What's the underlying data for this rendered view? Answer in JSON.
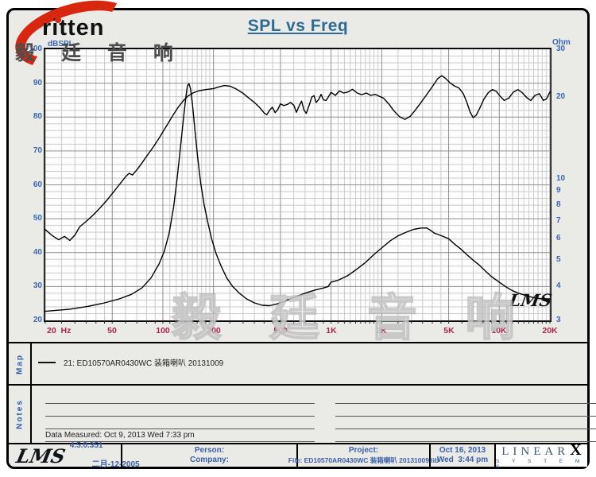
{
  "title": "SPL vs Freq",
  "logo": {
    "brand": "ritten",
    "chinese": "毅 廷 音 响"
  },
  "watermark": {
    "chinese": "毅 廷 音 响",
    "lms": "LMS"
  },
  "chart_data": {
    "type": "line",
    "title": "SPL vs Freq",
    "grid": true,
    "x_axis": {
      "scale": "log",
      "min": 20,
      "max": 20000,
      "unit": "Hz",
      "tick_values": [
        20,
        50,
        100,
        200,
        500,
        1000,
        2000,
        5000,
        10000,
        20000
      ],
      "tick_labels": [
        "20  Hz",
        "50",
        "100",
        "200",
        "500",
        "1K",
        "2K",
        "5K",
        "10K",
        "20K"
      ]
    },
    "y_axis_left": {
      "label": "dBSPL",
      "scale": "linear",
      "min": 20,
      "max": 100,
      "ticks": [
        100,
        90,
        80,
        70,
        60,
        50,
        40,
        30,
        20
      ]
    },
    "y_axis_right": {
      "label": "Ohm",
      "scale": "log",
      "min": 3,
      "max": 30,
      "ticks": [
        30,
        20,
        10,
        9,
        8,
        7,
        6,
        5,
        4,
        3
      ]
    },
    "series": [
      {
        "name": "SPL (dB)",
        "axis": "left",
        "color": "#000000",
        "points": [
          [
            20,
            46.8
          ],
          [
            22,
            45.0
          ],
          [
            24,
            43.8
          ],
          [
            26,
            44.8
          ],
          [
            28,
            43.6
          ],
          [
            30,
            45.2
          ],
          [
            32,
            47.6
          ],
          [
            35,
            49.2
          ],
          [
            38,
            50.8
          ],
          [
            42,
            53.0
          ],
          [
            46,
            55.2
          ],
          [
            50,
            57.4
          ],
          [
            55,
            60.0
          ],
          [
            60,
            62.4
          ],
          [
            63,
            63.4
          ],
          [
            66,
            62.9
          ],
          [
            70,
            64.4
          ],
          [
            75,
            66.4
          ],
          [
            80,
            68.4
          ],
          [
            85,
            70.2
          ],
          [
            90,
            72.0
          ],
          [
            95,
            73.8
          ],
          [
            100,
            75.6
          ],
          [
            107,
            78.0
          ],
          [
            115,
            80.6
          ],
          [
            123,
            82.8
          ],
          [
            132,
            84.8
          ],
          [
            141,
            86.2
          ],
          [
            152,
            87.2
          ],
          [
            165,
            87.8
          ],
          [
            180,
            88.1
          ],
          [
            200,
            88.4
          ],
          [
            215,
            88.9
          ],
          [
            232,
            89.3
          ],
          [
            252,
            89.1
          ],
          [
            275,
            88.2
          ],
          [
            300,
            87.0
          ],
          [
            325,
            85.6
          ],
          [
            350,
            84.3
          ],
          [
            375,
            82.9
          ],
          [
            400,
            81.2
          ],
          [
            415,
            80.7
          ],
          [
            432,
            82.1
          ],
          [
            448,
            82.9
          ],
          [
            465,
            81.3
          ],
          [
            482,
            82.2
          ],
          [
            500,
            83.9
          ],
          [
            522,
            83.4
          ],
          [
            548,
            83.7
          ],
          [
            575,
            84.3
          ],
          [
            600,
            83.5
          ],
          [
            622,
            81.4
          ],
          [
            645,
            83.2
          ],
          [
            668,
            84.7
          ],
          [
            690,
            82.1
          ],
          [
            712,
            81.1
          ],
          [
            740,
            83.4
          ],
          [
            768,
            85.9
          ],
          [
            792,
            86.3
          ],
          [
            815,
            84.3
          ],
          [
            845,
            85.2
          ],
          [
            872,
            86.7
          ],
          [
            900,
            85.1
          ],
          [
            935,
            84.9
          ],
          [
            968,
            86.1
          ],
          [
            1000,
            87.3
          ],
          [
            1060,
            86.4
          ],
          [
            1120,
            87.7
          ],
          [
            1190,
            87.1
          ],
          [
            1260,
            87.4
          ],
          [
            1340,
            88.2
          ],
          [
            1430,
            87.1
          ],
          [
            1520,
            86.6
          ],
          [
            1620,
            87.1
          ],
          [
            1720,
            86.4
          ],
          [
            1830,
            86.7
          ],
          [
            1940,
            86.1
          ],
          [
            2050,
            85.6
          ],
          [
            2200,
            83.9
          ],
          [
            2360,
            81.9
          ],
          [
            2550,
            80.1
          ],
          [
            2750,
            79.3
          ],
          [
            2950,
            80.2
          ],
          [
            3150,
            81.9
          ],
          [
            3400,
            84.1
          ],
          [
            3700,
            86.6
          ],
          [
            4000,
            89.0
          ],
          [
            4300,
            91.3
          ],
          [
            4550,
            92.2
          ],
          [
            4800,
            91.4
          ],
          [
            5100,
            90.1
          ],
          [
            5400,
            89.2
          ],
          [
            5750,
            88.6
          ],
          [
            6100,
            87.0
          ],
          [
            6400,
            84.5
          ],
          [
            6700,
            81.5
          ],
          [
            7000,
            79.8
          ],
          [
            7300,
            80.6
          ],
          [
            7700,
            82.9
          ],
          [
            8100,
            85.3
          ],
          [
            8600,
            87.2
          ],
          [
            9100,
            88.1
          ],
          [
            9600,
            87.6
          ],
          [
            10100,
            86.2
          ],
          [
            10700,
            84.9
          ],
          [
            11400,
            85.6
          ],
          [
            12100,
            87.3
          ],
          [
            12900,
            88.1
          ],
          [
            13700,
            87.2
          ],
          [
            14600,
            85.7
          ],
          [
            15400,
            84.9
          ],
          [
            16300,
            86.4
          ],
          [
            17300,
            86.9
          ],
          [
            18300,
            84.9
          ],
          [
            19100,
            85.4
          ],
          [
            20000,
            87.4
          ]
        ]
      },
      {
        "name": "Impedance (Ohm)",
        "axis": "right",
        "color": "#000000",
        "points": [
          [
            20,
            3.24
          ],
          [
            28,
            3.3
          ],
          [
            36,
            3.38
          ],
          [
            45,
            3.48
          ],
          [
            55,
            3.6
          ],
          [
            65,
            3.74
          ],
          [
            75,
            3.95
          ],
          [
            85,
            4.3
          ],
          [
            95,
            4.85
          ],
          [
            102,
            5.4
          ],
          [
            109,
            6.3
          ],
          [
            116,
            7.9
          ],
          [
            122,
            10.2
          ],
          [
            128,
            13.5
          ],
          [
            133,
            17.0
          ],
          [
            137,
            20.0
          ],
          [
            140,
            22.0
          ],
          [
            143,
            22.4
          ],
          [
            146,
            21.5
          ],
          [
            150,
            18.8
          ],
          [
            155,
            15.2
          ],
          [
            161,
            12.0
          ],
          [
            168,
            9.6
          ],
          [
            176,
            8.0
          ],
          [
            185,
            6.9
          ],
          [
            195,
            6.0
          ],
          [
            207,
            5.3
          ],
          [
            222,
            4.75
          ],
          [
            240,
            4.3
          ],
          [
            260,
            4.0
          ],
          [
            285,
            3.78
          ],
          [
            315,
            3.6
          ],
          [
            350,
            3.48
          ],
          [
            390,
            3.41
          ],
          [
            430,
            3.4
          ],
          [
            470,
            3.44
          ],
          [
            510,
            3.5
          ],
          [
            560,
            3.58
          ],
          [
            610,
            3.66
          ],
          [
            700,
            3.78
          ],
          [
            800,
            3.88
          ],
          [
            900,
            3.95
          ],
          [
            960,
            4.0
          ],
          [
            1000,
            4.15
          ],
          [
            1100,
            4.22
          ],
          [
            1250,
            4.38
          ],
          [
            1400,
            4.6
          ],
          [
            1600,
            4.9
          ],
          [
            1800,
            5.25
          ],
          [
            2000,
            5.55
          ],
          [
            2250,
            5.9
          ],
          [
            2500,
            6.15
          ],
          [
            2800,
            6.35
          ],
          [
            3100,
            6.5
          ],
          [
            3400,
            6.57
          ],
          [
            3700,
            6.58
          ],
          [
            3900,
            6.45
          ],
          [
            4100,
            6.3
          ],
          [
            4400,
            6.2
          ],
          [
            4700,
            6.1
          ],
          [
            5000,
            6.0
          ],
          [
            5400,
            5.75
          ],
          [
            5900,
            5.5
          ],
          [
            6400,
            5.25
          ],
          [
            7000,
            5.0
          ],
          [
            7600,
            4.8
          ],
          [
            8300,
            4.55
          ],
          [
            9000,
            4.35
          ],
          [
            10000,
            4.15
          ],
          [
            11000,
            3.98
          ],
          [
            12000,
            3.86
          ],
          [
            13000,
            3.78
          ],
          [
            14500,
            3.7
          ],
          [
            16000,
            3.64
          ],
          [
            18000,
            3.6
          ],
          [
            20000,
            3.6
          ]
        ]
      }
    ]
  },
  "map": {
    "label": "Map",
    "legend": "21: ED10570AR0430WC 装箱喇叭    20131009"
  },
  "notes": {
    "label": "Notes",
    "data_measured": "Data Measured: Oct  9, 2013  Wed  7:33 pm"
  },
  "footer": {
    "lms_logo": "LMS",
    "version": "4.5.0.351",
    "version_date": "二月-12-2005",
    "person_label": "Person:",
    "company_label": "Company:",
    "project_label": "Project:",
    "file_line": "File: ED10570AR0430WC 装箱喇叭 20131009.lib",
    "report_date": "Oct 16, 2013",
    "report_time": "Wed  3:44 pm",
    "linearx_linear": "LINEAR",
    "linearx_x": "X",
    "linearx_systems": "S   Y   S   T   E   M   S"
  }
}
